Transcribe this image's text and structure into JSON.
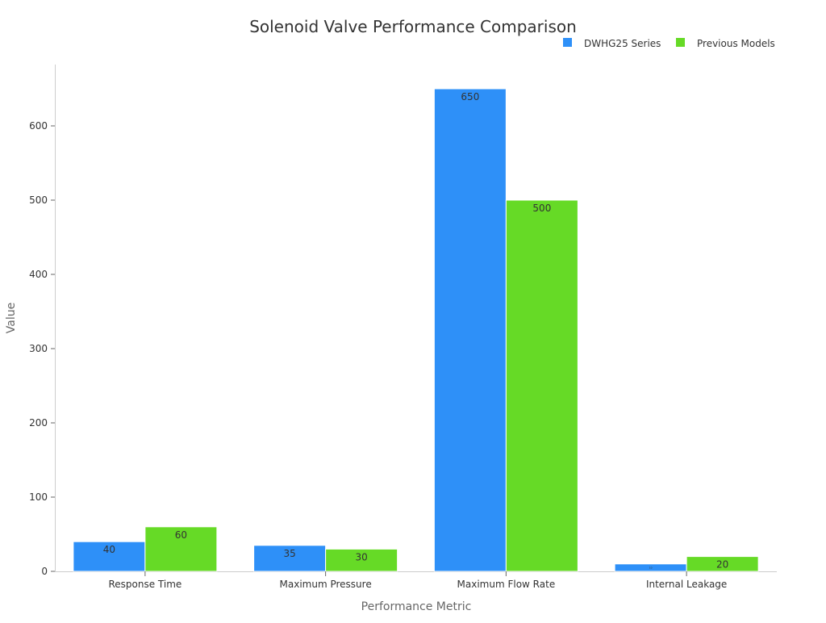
{
  "chart_data": {
    "type": "bar",
    "title": "Solenoid Valve Performance Comparison",
    "xlabel": "Performance Metric",
    "ylabel": "Value",
    "categories": [
      "Response Time",
      "Maximum Pressure",
      "Maximum Flow Rate",
      "Internal Leakage"
    ],
    "series": [
      {
        "name": "DWHG25 Series",
        "color": "#2e90f8",
        "values": [
          40,
          35,
          650,
          10
        ]
      },
      {
        "name": "Previous Models",
        "color": "#66da26",
        "values": [
          60,
          30,
          500,
          20
        ]
      }
    ],
    "ylim": [
      0,
      680
    ],
    "yticks": [
      0,
      100,
      200,
      300,
      400,
      500,
      600
    ],
    "grid": false,
    "legend": "top-right"
  }
}
